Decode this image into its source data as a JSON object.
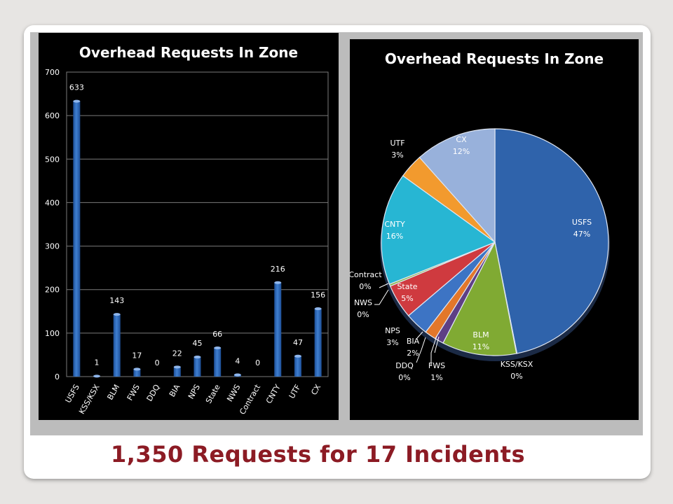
{
  "slide": {
    "caption": "1,350 Requests for 17 Incidents"
  },
  "chart_data": [
    {
      "type": "bar",
      "title": "Overhead Requests In Zone",
      "categories": [
        "USFS",
        "KSS/KSX",
        "BLM",
        "FWS",
        "DDQ",
        "BIA",
        "NPS",
        "State",
        "NWS",
        "Contract",
        "CNTY",
        "UTF",
        "CX"
      ],
      "values": [
        633,
        1,
        143,
        17,
        0,
        22,
        45,
        66,
        4,
        0,
        216,
        47,
        156
      ],
      "ylim": [
        0,
        700
      ],
      "yticks": [
        0,
        100,
        200,
        300,
        400,
        500,
        600,
        700
      ],
      "grid": true,
      "color": "#3f7fd0"
    },
    {
      "type": "pie",
      "title": "Overhead Requests In Zone",
      "slices": [
        {
          "name": "USFS",
          "value": 633,
          "pct": "47%",
          "color": "#2f63ab"
        },
        {
          "name": "KSS/KSX",
          "value": 1,
          "pct": "0%",
          "color": "#a0282a"
        },
        {
          "name": "BLM",
          "value": 143,
          "pct": "11%",
          "color": "#80aa33"
        },
        {
          "name": "FWS",
          "value": 17,
          "pct": "1%",
          "color": "#5e3f85"
        },
        {
          "name": "DDQ",
          "value": 0,
          "pct": "0%",
          "color": "#1f9fb5"
        },
        {
          "name": "BIA",
          "value": 22,
          "pct": "2%",
          "color": "#e3772a"
        },
        {
          "name": "NPS",
          "value": 45,
          "pct": "3%",
          "color": "#3d74c4"
        },
        {
          "name": "State",
          "value": 66,
          "pct": "5%",
          "color": "#cf3a3f"
        },
        {
          "name": "NWS",
          "value": 4,
          "pct": "0%",
          "color": "#8bb84a"
        },
        {
          "name": "Contract",
          "value": 0,
          "pct": "0%",
          "color": "#7b5aa6"
        },
        {
          "name": "CNTY",
          "value": 216,
          "pct": "16%",
          "color": "#27b6d3"
        },
        {
          "name": "UTF",
          "value": 47,
          "pct": "3%",
          "color": "#f29a2e"
        },
        {
          "name": "CX",
          "value": 156,
          "pct": "12%",
          "color": "#98b1db"
        }
      ]
    }
  ]
}
